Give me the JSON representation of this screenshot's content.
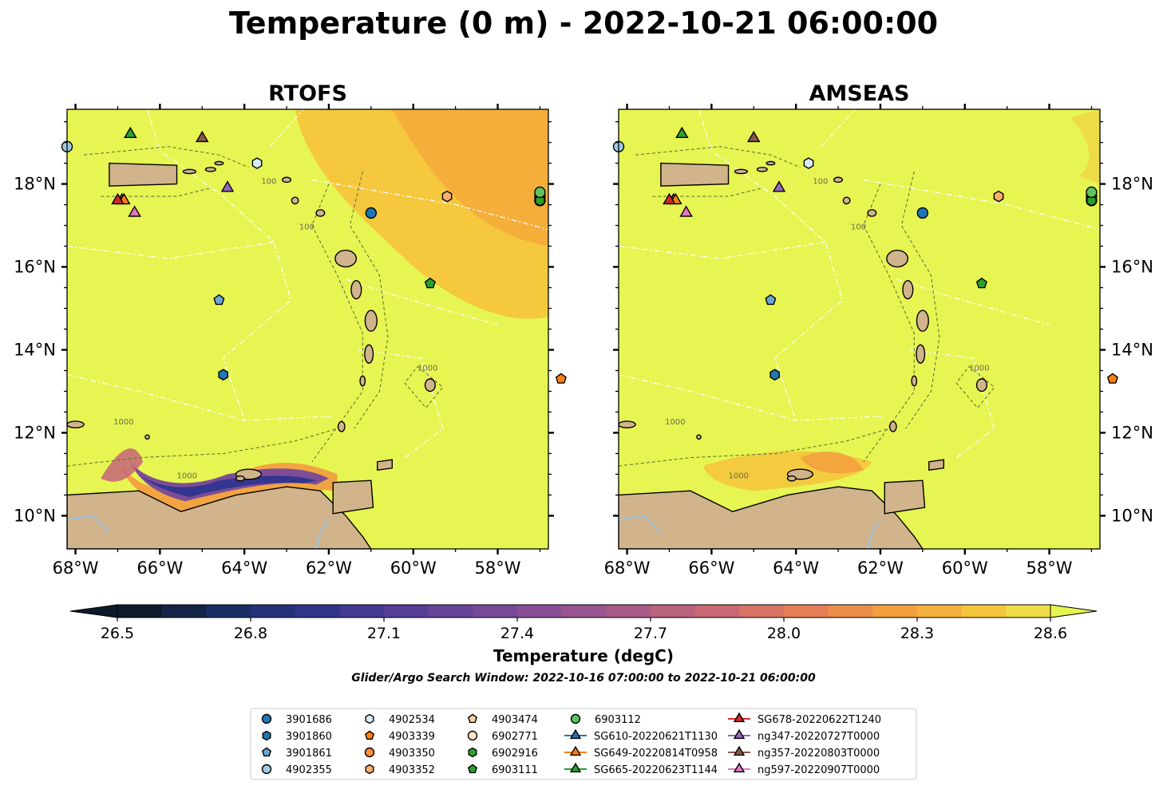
{
  "figure": {
    "suptitle": "Temperature (0 m) - 2022-10-21 06:00:00",
    "search_window": "Glider/Argo Search Window: 2022-10-16 07:00:00 to 2022-10-21 06:00:00"
  },
  "colors": {
    "land": "#d1b48c",
    "sea_warm": "#e6f552",
    "coast": "#000000",
    "contour": "#556b2f",
    "eez": "#ffffff"
  },
  "chart_data": [
    {
      "type": "heatmap",
      "title": "RTOFS",
      "xlabel": "",
      "ylabel": "",
      "xlim": [
        -68.2,
        -56.8
      ],
      "ylim": [
        9.2,
        19.8
      ],
      "xticks": [
        "68°W",
        "66°W",
        "64°W",
        "62°W",
        "60°W",
        "58°W"
      ],
      "yticks": [
        "10°N",
        "12°N",
        "14°N",
        "16°N",
        "18°N"
      ],
      "ytick_side": "left",
      "contour_labels": [
        "100",
        "1000"
      ],
      "features": [
        "southern caribbean cold upwelling (~26.5-27.5 degC)",
        "warmer atlantic NE of islands (~28.3-28.5 degC)"
      ]
    },
    {
      "type": "heatmap",
      "title": "AMSEAS",
      "xlabel": "",
      "ylabel": "",
      "xlim": [
        -68.2,
        -56.8
      ],
      "ylim": [
        9.2,
        19.8
      ],
      "xticks": [
        "68°W",
        "66°W",
        "64°W",
        "62°W",
        "60°W",
        "58°W"
      ],
      "yticks": [
        "10°N",
        "12°N",
        "14°N",
        "16°N",
        "18°N"
      ],
      "ytick_side": "right",
      "contour_labels": [
        "100",
        "1000"
      ],
      "features": [
        "weaker cooling patch off venezuela (~28.2-28.4 degC)"
      ]
    }
  ],
  "colorbar": {
    "label": "Temperature (degC)",
    "min": 26.4,
    "max": 28.7,
    "ticks": [
      "26.5",
      "26.8",
      "27.1",
      "27.4",
      "27.7",
      "28.0",
      "28.3",
      "28.6"
    ],
    "extend": "both",
    "stops": [
      "#0d1a2b",
      "#1b2f66",
      "#33358f",
      "#5a3f99",
      "#7d4d96",
      "#a0588d",
      "#c46478",
      "#e07a5a",
      "#f29b3e",
      "#f6c33b",
      "#e6f552"
    ]
  },
  "observations": [
    {
      "id": "3901686",
      "lon": -61.0,
      "lat": 17.3,
      "marker": "circle",
      "color": "#1f77b4"
    },
    {
      "id": "3901860",
      "lon": -64.5,
      "lat": 13.4,
      "marker": "hexagon",
      "color": "#1f77b4"
    },
    {
      "id": "3901861",
      "lon": -64.6,
      "lat": 15.2,
      "marker": "pentagon",
      "color": "#6aa6d8"
    },
    {
      "id": "4902355",
      "lon": -68.2,
      "lat": 18.9,
      "marker": "circle",
      "color": "#9ecae1"
    },
    {
      "id": "4902534",
      "lon": -63.7,
      "lat": 18.5,
      "marker": "hexagon",
      "color": "#d6ecf7"
    },
    {
      "id": "4903339",
      "lon": -56.5,
      "lat": 13.3,
      "marker": "pentagon",
      "color": "#ff7f0e"
    },
    {
      "id": "4903350",
      "lon": -57.0,
      "lat": 17.7,
      "marker": "circle",
      "color": "#fd8d3c"
    },
    {
      "id": "4903352",
      "lon": -59.2,
      "lat": 17.7,
      "marker": "hexagon",
      "color": "#fdae6b"
    },
    {
      "id": "4903474",
      "lon": -57.0,
      "lat": 17.6,
      "marker": "pentagon",
      "color": "#fdd0a2"
    },
    {
      "id": "6902771",
      "lon": -57.0,
      "lat": 17.6,
      "marker": "circle",
      "color": "#fee6ce"
    },
    {
      "id": "6902916",
      "lon": -57.0,
      "lat": 17.6,
      "marker": "hexagon",
      "color": "#2ca02c"
    },
    {
      "id": "6903111",
      "lon": -59.6,
      "lat": 15.6,
      "marker": "pentagon",
      "color": "#2ca02c"
    },
    {
      "id": "6903112",
      "lon": -57.0,
      "lat": 17.8,
      "marker": "circle",
      "color": "#5ec45e"
    },
    {
      "id": "SG610-20220621T1130",
      "lon": -66.9,
      "lat": 17.6,
      "marker": "triangle",
      "color": "#1f77b4"
    },
    {
      "id": "SG649-20220814T0958",
      "lon": -66.85,
      "lat": 17.6,
      "marker": "triangle",
      "color": "#ff7f0e"
    },
    {
      "id": "SG665-20220623T1144",
      "lon": -66.7,
      "lat": 19.2,
      "marker": "triangle",
      "color": "#2ca02c"
    },
    {
      "id": "SG678-20220622T1240",
      "lon": -67.0,
      "lat": 17.6,
      "marker": "triangle",
      "color": "#d62728"
    },
    {
      "id": "ng347-20220727T0000",
      "lon": -64.4,
      "lat": 17.9,
      "marker": "triangle",
      "color": "#9467bd"
    },
    {
      "id": "ng357-20220803T0000",
      "lon": -65.0,
      "lat": 19.1,
      "marker": "triangle",
      "color": "#8c564b"
    },
    {
      "id": "ng597-20220907T0000",
      "lon": -66.6,
      "lat": 17.3,
      "marker": "triangle",
      "color": "#e377c2"
    }
  ],
  "legend": {
    "columns": [
      [
        {
          "label": "3901686",
          "marker": "circle",
          "color": "#1f77b4",
          "line": false
        },
        {
          "label": "3901860",
          "marker": "hexagon",
          "color": "#1f77b4",
          "line": false
        },
        {
          "label": "3901861",
          "marker": "pentagon",
          "color": "#6aa6d8",
          "line": false
        },
        {
          "label": "4902355",
          "marker": "circle",
          "color": "#9ecae1",
          "line": false
        }
      ],
      [
        {
          "label": "4902534",
          "marker": "hexagon",
          "color": "#d6ecf7",
          "line": false
        },
        {
          "label": "4903339",
          "marker": "pentagon",
          "color": "#ff7f0e",
          "line": false
        },
        {
          "label": "4903350",
          "marker": "circle",
          "color": "#fd8d3c",
          "line": false
        },
        {
          "label": "4903352",
          "marker": "hexagon",
          "color": "#fdae6b",
          "line": false
        }
      ],
      [
        {
          "label": "4903474",
          "marker": "pentagon",
          "color": "#fdd0a2",
          "line": false
        },
        {
          "label": "6902771",
          "marker": "circle",
          "color": "#fee6ce",
          "line": false
        },
        {
          "label": "6902916",
          "marker": "hexagon",
          "color": "#2ca02c",
          "line": false
        },
        {
          "label": "6903111",
          "marker": "pentagon",
          "color": "#2ca02c",
          "line": false
        }
      ],
      [
        {
          "label": "6903112",
          "marker": "circle",
          "color": "#5ec45e",
          "line": false
        },
        {
          "label": "SG610-20220621T1130",
          "marker": "triangle",
          "color": "#1f77b4",
          "line": true
        },
        {
          "label": "SG649-20220814T0958",
          "marker": "triangle",
          "color": "#ff7f0e",
          "line": true
        },
        {
          "label": "SG665-20220623T1144",
          "marker": "triangle",
          "color": "#2ca02c",
          "line": true
        }
      ],
      [
        {
          "label": "SG678-20220622T1240",
          "marker": "triangle",
          "color": "#d62728",
          "line": true
        },
        {
          "label": "ng347-20220727T0000",
          "marker": "triangle",
          "color": "#9467bd",
          "line": true
        },
        {
          "label": "ng357-20220803T0000",
          "marker": "triangle",
          "color": "#8c564b",
          "line": true
        },
        {
          "label": "ng597-20220907T0000",
          "marker": "triangle",
          "color": "#e377c2",
          "line": true
        }
      ]
    ]
  }
}
